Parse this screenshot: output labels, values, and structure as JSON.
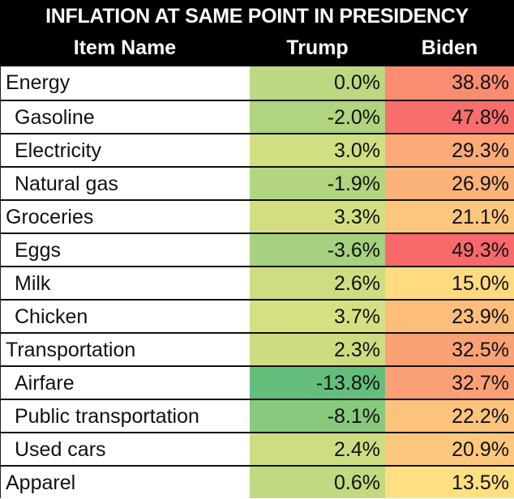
{
  "chart_data": {
    "type": "table",
    "title": "INFLATION AT SAME POINT IN PRESIDENCY",
    "columns": [
      "Item Name",
      "Trump",
      "Biden"
    ],
    "rows": [
      {
        "name": "Energy",
        "level": 0,
        "trump": "0.0%",
        "biden": "38.8%"
      },
      {
        "name": "Gasoline",
        "level": 1,
        "trump": "-2.0%",
        "biden": "47.8%"
      },
      {
        "name": "Electricity",
        "level": 1,
        "trump": "3.0%",
        "biden": "29.3%"
      },
      {
        "name": "Natural gas",
        "level": 1,
        "trump": "-1.9%",
        "biden": "26.9%"
      },
      {
        "name": "Groceries",
        "level": 0,
        "trump": "3.3%",
        "biden": "21.1%"
      },
      {
        "name": "Eggs",
        "level": 1,
        "trump": "-3.6%",
        "biden": "49.3%"
      },
      {
        "name": "Milk",
        "level": 1,
        "trump": "2.6%",
        "biden": "15.0%"
      },
      {
        "name": "Chicken",
        "level": 1,
        "trump": "3.7%",
        "biden": "23.9%"
      },
      {
        "name": "Transportation",
        "level": 0,
        "trump": "2.3%",
        "biden": "32.5%"
      },
      {
        "name": "Airfare",
        "level": 1,
        "trump": "-13.8%",
        "biden": "32.7%"
      },
      {
        "name": "Public transportation",
        "level": 1,
        "trump": "-8.1%",
        "biden": "22.2%"
      },
      {
        "name": "Used cars",
        "level": 1,
        "trump": "2.4%",
        "biden": "20.9%"
      },
      {
        "name": "Apparel",
        "level": 0,
        "trump": "0.6%",
        "biden": "13.5%"
      }
    ],
    "color_scale": {
      "low": "#63BE7B",
      "mid": "#FFEB84",
      "high": "#F8696B"
    }
  }
}
